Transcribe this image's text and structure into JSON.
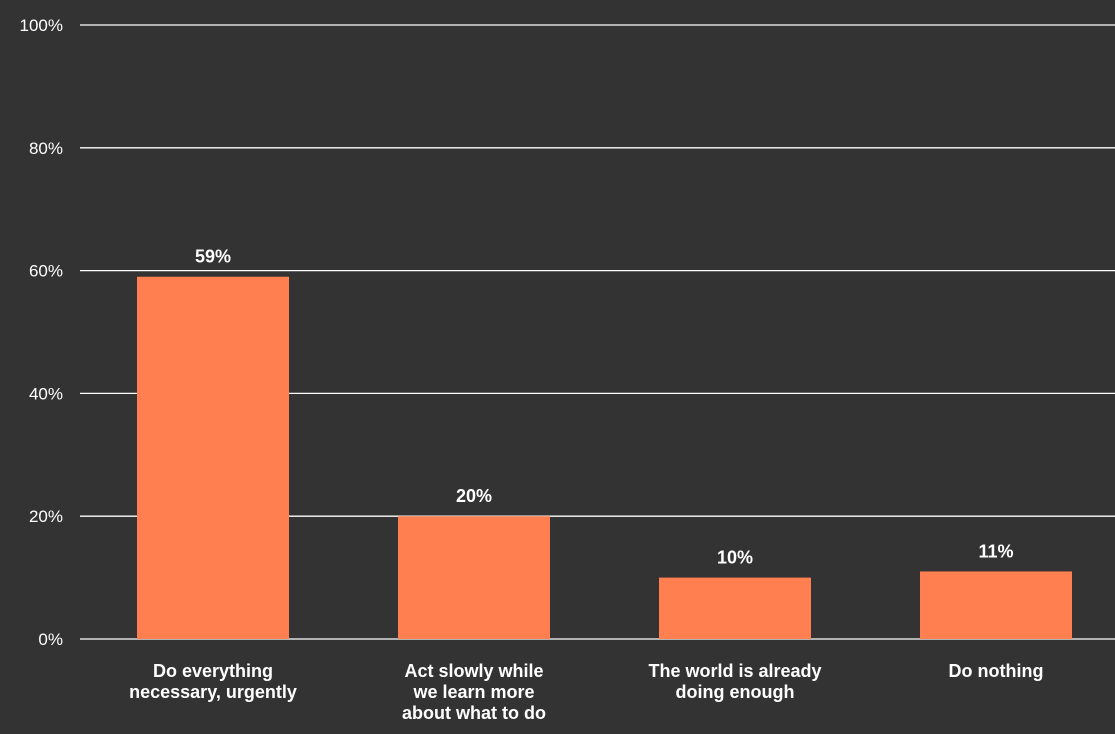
{
  "chart_data": {
    "type": "bar",
    "categories": [
      [
        "Do everything",
        "necessary, urgently"
      ],
      [
        "Act slowly while",
        "we learn more",
        "about what to do"
      ],
      [
        "The world is already",
        "doing enough"
      ],
      [
        "Do nothing"
      ]
    ],
    "values": [
      59,
      20,
      10,
      11
    ],
    "data_labels": [
      "59%",
      "20%",
      "10%",
      "11%"
    ],
    "ylim": [
      0,
      100
    ],
    "yticks": [
      0,
      20,
      40,
      60,
      80,
      100
    ],
    "ytick_labels": [
      "0%",
      "20%",
      "40%",
      "60%",
      "80%",
      "100%"
    ],
    "grid": true,
    "legend": "none",
    "colors": {
      "background": "#333333",
      "bar": "#FF7F50",
      "grid": "#FFFFFF",
      "text": "#FFFFFF"
    }
  }
}
